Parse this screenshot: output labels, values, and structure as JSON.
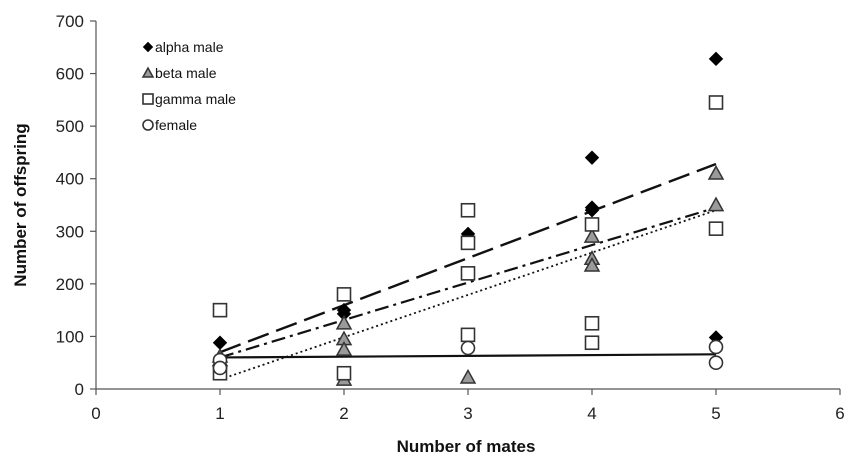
{
  "chart_data": {
    "type": "scatter",
    "xlabel": "Number of mates",
    "ylabel": "Number of offspring",
    "xlim": [
      0,
      6
    ],
    "ylim": [
      0,
      700
    ],
    "xticks": [
      0,
      1,
      2,
      3,
      4,
      5,
      6
    ],
    "yticks": [
      0,
      100,
      200,
      300,
      400,
      500,
      600,
      700
    ],
    "grid": false,
    "legend_position": "top-left",
    "series": [
      {
        "name": "alpha male",
        "marker": "diamond",
        "marker_fill": "#000000",
        "points": [
          [
            1,
            88
          ],
          [
            2,
            150
          ],
          [
            2,
            143
          ],
          [
            3,
            295
          ],
          [
            4,
            440
          ],
          [
            4,
            345
          ],
          [
            4,
            340
          ],
          [
            5,
            628
          ],
          [
            5,
            98
          ]
        ],
        "trendline": {
          "style": "long-dash",
          "x": [
            1,
            5
          ],
          "y": [
            70,
            428
          ]
        }
      },
      {
        "name": "beta male",
        "marker": "triangle",
        "marker_fill": "#9a9a9a",
        "points": [
          [
            1,
            62
          ],
          [
            1,
            55
          ],
          [
            2,
            125
          ],
          [
            2,
            95
          ],
          [
            2,
            75
          ],
          [
            2,
            18
          ],
          [
            3,
            22
          ],
          [
            4,
            290
          ],
          [
            4,
            248
          ],
          [
            4,
            235
          ],
          [
            5,
            410
          ],
          [
            5,
            350
          ]
        ],
        "trendline": {
          "style": "dash-dot",
          "x": [
            1,
            5
          ],
          "y": [
            60,
            345
          ]
        }
      },
      {
        "name": "gamma male",
        "marker": "square",
        "marker_fill": "#ffffff",
        "points": [
          [
            1,
            150
          ],
          [
            1,
            30
          ],
          [
            2,
            180
          ],
          [
            2,
            30
          ],
          [
            3,
            340
          ],
          [
            3,
            278
          ],
          [
            3,
            220
          ],
          [
            3,
            103
          ],
          [
            4,
            313
          ],
          [
            4,
            125
          ],
          [
            4,
            88
          ],
          [
            5,
            545
          ],
          [
            5,
            305
          ]
        ],
        "trendline": {
          "style": "dotted",
          "x": [
            1,
            5
          ],
          "y": [
            18,
            340
          ]
        }
      },
      {
        "name": "female",
        "marker": "circle",
        "marker_fill": "#ffffff",
        "points": [
          [
            1,
            55
          ],
          [
            1,
            40
          ],
          [
            3,
            78
          ],
          [
            5,
            80
          ],
          [
            5,
            50
          ]
        ],
        "trendline": {
          "style": "solid",
          "x": [
            1,
            5
          ],
          "y": [
            60,
            66
          ]
        }
      }
    ]
  }
}
